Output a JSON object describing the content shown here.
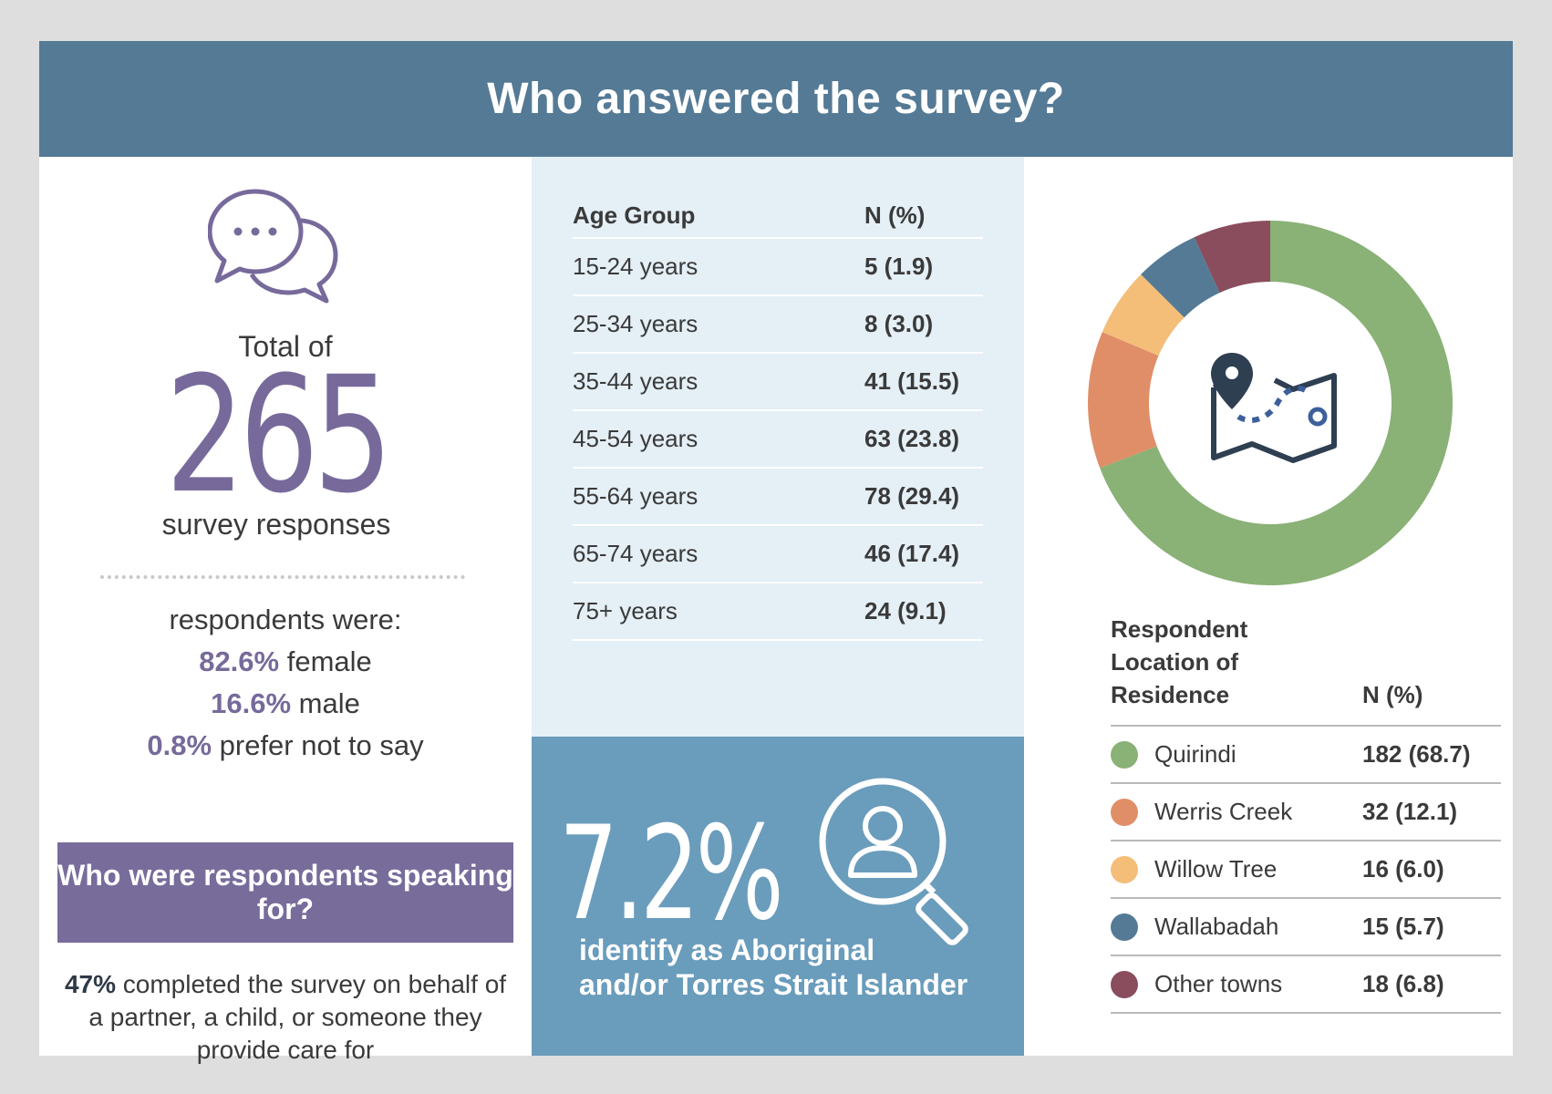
{
  "header": {
    "title": "Who answered the survey?"
  },
  "left": {
    "total_of": "Total of",
    "total_number": "265",
    "responses_label": "survey responses",
    "respondents_were": "respondents were:",
    "gender": [
      {
        "pct": "82.6%",
        "label": "female"
      },
      {
        "pct": "16.6%",
        "label": "male"
      },
      {
        "pct": "0.8%",
        "label": "prefer not to say"
      }
    ],
    "speaking_for_title": "Who were respondents speaking for?",
    "partner_pct": "47%",
    "partner_text": "completed the survey on behalf of a partner, a child, or someone they provide care for"
  },
  "age_table": {
    "header": {
      "group": "Age Group",
      "n": "N (%)"
    },
    "rows": [
      {
        "group": "15-24 years",
        "n": "5 (1.9)"
      },
      {
        "group": "25-34 years",
        "n": "8 (3.0)"
      },
      {
        "group": "35-44 years",
        "n": "41 (15.5)"
      },
      {
        "group": "45-54 years",
        "n": "63 (23.8)"
      },
      {
        "group": "55-64 years",
        "n": "78 (29.4)"
      },
      {
        "group": "65-74 years",
        "n": "46 (17.4)"
      },
      {
        "group": "75+ years",
        "n": "24 (9.1)"
      }
    ]
  },
  "aboriginal": {
    "pct": "7.2%",
    "line1": "identify as Aboriginal",
    "line2": "and/or Torres Strait Islander"
  },
  "location": {
    "header": {
      "line1": "Respondent",
      "line2": "Location of",
      "line3": "Residence",
      "n": "N (%)"
    },
    "rows": [
      {
        "name": "Quirindi",
        "n": "182 (68.7)",
        "value": 182,
        "color": "#8ab176"
      },
      {
        "name": "Werris Creek",
        "n": "32 (12.1)",
        "value": 32,
        "color": "#e08e68"
      },
      {
        "name": "Willow Tree",
        "n": "16 (6.0)",
        "value": 16,
        "color": "#f4bd78"
      },
      {
        "name": "Wallabadah",
        "n": "15 (5.7)",
        "value": 15,
        "color": "#547a95"
      },
      {
        "name": "Other towns",
        "n": "18 (6.8)",
        "value": 18,
        "color": "#8a4d5e"
      }
    ]
  },
  "icons": {
    "chat": "chat-bubbles-icon",
    "map": "map-pin-route-icon",
    "search_person": "search-person-icon"
  }
}
